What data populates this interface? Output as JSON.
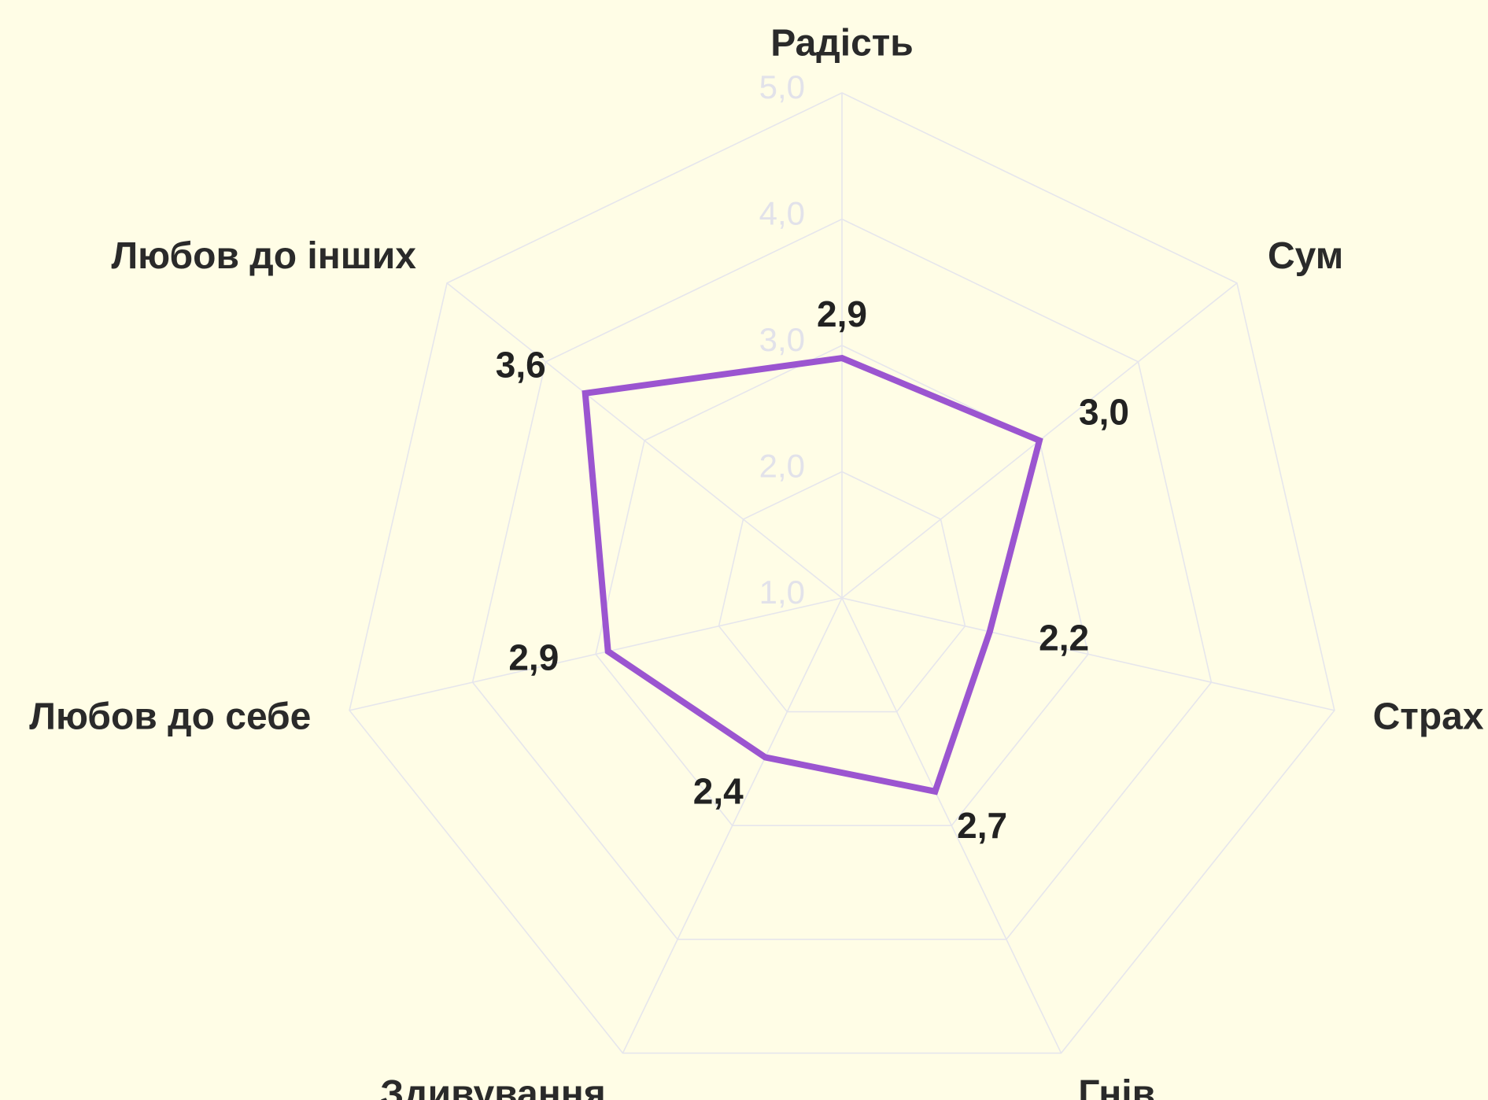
{
  "chart_data": {
    "type": "radar",
    "categories": [
      "Радість",
      "Сум",
      "Страх",
      "Гнів",
      "Здивування",
      "Любов до себе",
      "Любов до інших"
    ],
    "series": [
      {
        "color": "#9b55d0",
        "values": [
          2.9,
          3.0,
          2.2,
          2.7,
          2.4,
          2.9,
          3.6
        ],
        "value_labels": [
          "2,9",
          "3,0",
          "2,2",
          "2,7",
          "2,4",
          "2,9",
          "3,6"
        ]
      }
    ],
    "ylim": [
      1,
      5
    ],
    "yticks": [
      {
        "value": 1,
        "label": "1,0"
      },
      {
        "value": 2,
        "label": "2,0"
      },
      {
        "value": 3,
        "label": "3,0"
      },
      {
        "value": 4,
        "label": "4,0"
      },
      {
        "value": 5,
        "label": "5,0"
      }
    ],
    "grid": true
  }
}
